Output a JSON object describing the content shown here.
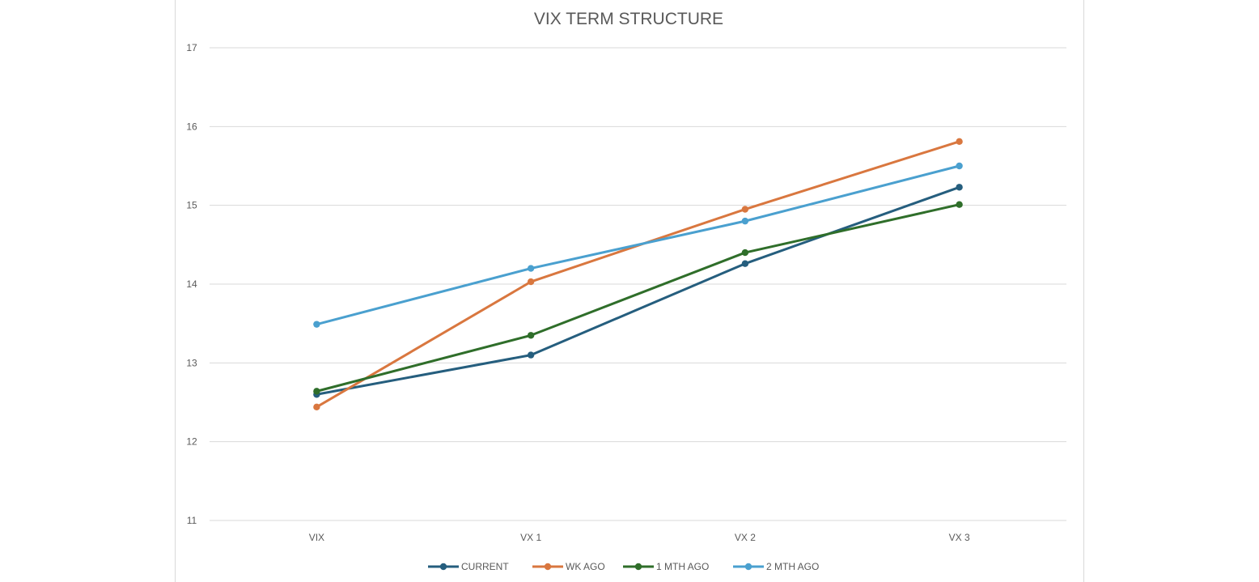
{
  "chart_data": {
    "type": "line",
    "title": "VIX TERM STRUCTURE",
    "xlabel": "",
    "ylabel": "",
    "categories": [
      "VIX",
      "VX 1",
      "VX 2",
      "VX 3"
    ],
    "ylim": [
      11,
      17
    ],
    "yticks": [
      "11",
      "12",
      "13",
      "14",
      "15",
      "16",
      "17"
    ],
    "grid": true,
    "legend_position": "bottom",
    "series": [
      {
        "name": "CURRENT",
        "color": "#255e7e",
        "values": [
          12.6,
          13.1,
          14.26,
          15.23
        ]
      },
      {
        "name": "WK AGO",
        "color": "#d9773f",
        "values": [
          12.44,
          14.03,
          14.95,
          15.81
        ]
      },
      {
        "name": "1 MTH AGO",
        "color": "#2f6e2a",
        "values": [
          12.64,
          13.35,
          14.4,
          15.01
        ]
      },
      {
        "name": "2 MTH AGO",
        "color": "#4aa0cf",
        "values": [
          13.49,
          14.2,
          14.8,
          15.5
        ]
      }
    ]
  }
}
